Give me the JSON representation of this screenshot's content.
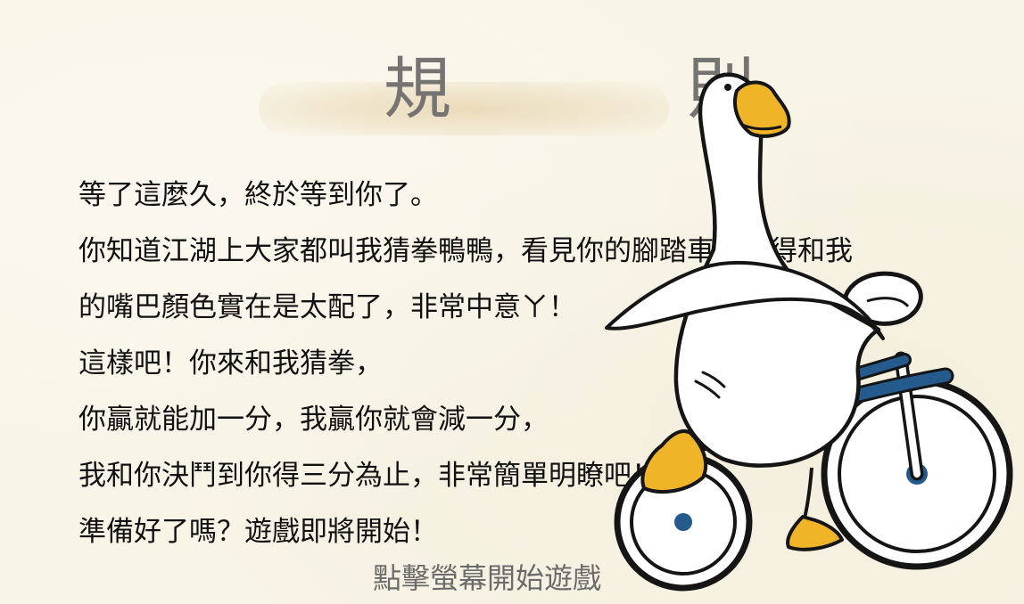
{
  "rules": {
    "title": "規 則",
    "lines": [
      "等了這麼久，終於等到你了。",
      "你知道江湖上大家都叫我猜拳鴨鴨，看見你的腳踏車，覺得和我",
      "的嘴巴顏色實在是太配了，非常中意ㄚ！",
      "這樣吧！你來和我猜拳，",
      "你贏就能加一分，我贏你就會減一分，",
      "我和你決鬥到你得三分為止，非常簡單明瞭吧！",
      "準備好了嗎？遊戲即將開始！"
    ]
  },
  "start_prompt": "點擊螢幕開始遊戲",
  "colors": {
    "background": "#f8f4e6",
    "title_text": "#767472",
    "body_text": "#111111",
    "hint_text": "#6b6b6b",
    "beak": "#f0b428",
    "bike_frame": "#245a8c"
  },
  "illustration": {
    "character": "goose-on-bicycle"
  }
}
